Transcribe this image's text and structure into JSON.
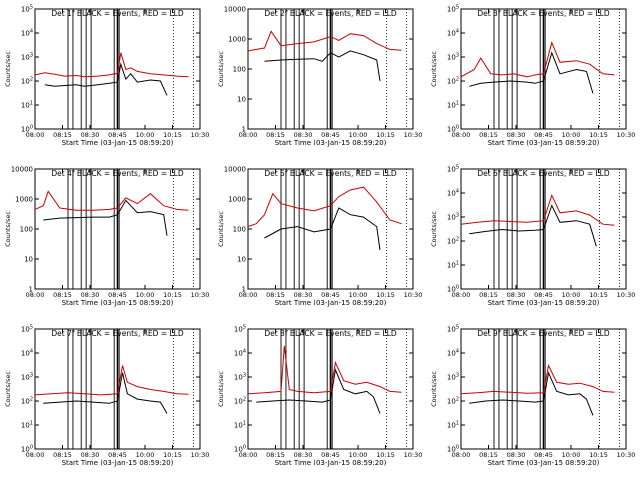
{
  "chart_data": [
    {
      "type": "line",
      "title": "Det 1f BLACK = Events, RED = LLD",
      "ylabel": "Counts/sec",
      "xlabel": "Start Time (03-Jan-15 08:59:20)",
      "yscale": "log",
      "ylim": [
        1,
        100000
      ],
      "xlim": [
        "08:00",
        "10:30"
      ],
      "xticks": [
        "08:00",
        "08:15",
        "08:30",
        "08:45",
        "10:00",
        "10:15",
        "10:30"
      ],
      "yticks": [
        "10^0",
        "10^1",
        "10^2",
        "10^3",
        "10^4",
        "10^5"
      ],
      "series": [
        {
          "name": "RED",
          "color": "#cc0000",
          "x": [
            0,
            0.06,
            0.12,
            0.18,
            0.25,
            0.3,
            0.38,
            0.45,
            0.5,
            0.52,
            0.55,
            0.58,
            0.62,
            0.7,
            0.78,
            0.86,
            0.93
          ],
          "y": [
            180,
            220,
            190,
            160,
            170,
            150,
            160,
            180,
            210,
            1500,
            300,
            350,
            250,
            200,
            180,
            160,
            150
          ]
        },
        {
          "name": "BLACK",
          "color": "#000000",
          "x": [
            0.06,
            0.12,
            0.18,
            0.25,
            0.3,
            0.38,
            0.45,
            0.5,
            0.52,
            0.55,
            0.58,
            0.62,
            0.7,
            0.76,
            0.8
          ],
          "y": [
            70,
            60,
            65,
            70,
            60,
            70,
            80,
            90,
            500,
            120,
            200,
            90,
            110,
            100,
            25
          ]
        }
      ]
    },
    {
      "type": "line",
      "title": "Det 2f BLACK = Events, RED = LLD",
      "ylabel": "Counts/sec",
      "xlabel": "Start Time (03-Jan-15 08:59:20)",
      "yscale": "log",
      "ylim": [
        1,
        10000
      ],
      "xlim": [
        "08:00",
        "10:30"
      ],
      "xticks": [
        "08:00",
        "08:15",
        "08:30",
        "08:45",
        "10:00",
        "10:15",
        "10:30"
      ],
      "yticks": [
        "1",
        "10",
        "100",
        "1000",
        "10000"
      ],
      "series": [
        {
          "name": "RED",
          "color": "#cc0000",
          "x": [
            0,
            0.05,
            0.1,
            0.14,
            0.2,
            0.3,
            0.4,
            0.5,
            0.55,
            0.62,
            0.7,
            0.78,
            0.86,
            0.93
          ],
          "y": [
            400,
            450,
            500,
            1800,
            600,
            700,
            800,
            1200,
            900,
            1500,
            1300,
            700,
            450,
            420
          ]
        },
        {
          "name": "BLACK",
          "color": "#000000",
          "x": [
            0.1,
            0.2,
            0.3,
            0.4,
            0.45,
            0.5,
            0.55,
            0.62,
            0.7,
            0.78,
            0.8
          ],
          "y": [
            180,
            200,
            210,
            220,
            180,
            350,
            250,
            400,
            300,
            200,
            40
          ]
        }
      ]
    },
    {
      "type": "line",
      "title": "Det 3f BLACK = Events, RED = LLD",
      "ylabel": "Counts/sec",
      "xlabel": "Start Time (03-Jan-15 08:59:20)",
      "yscale": "log",
      "ylim": [
        1,
        100000
      ],
      "xlim": [
        "08:00",
        "10:30"
      ],
      "xticks": [
        "08:00",
        "08:15",
        "08:30",
        "08:45",
        "10:00",
        "10:15",
        "10:30"
      ],
      "yticks": [
        "10^0",
        "10^1",
        "10^2",
        "10^3",
        "10^4",
        "10^5"
      ],
      "series": [
        {
          "name": "RED",
          "color": "#cc0000",
          "x": [
            0,
            0.08,
            0.12,
            0.18,
            0.25,
            0.32,
            0.4,
            0.45,
            0.5,
            0.55,
            0.6,
            0.7,
            0.78,
            0.86,
            0.93
          ],
          "y": [
            150,
            300,
            900,
            200,
            180,
            200,
            150,
            180,
            200,
            4000,
            600,
            700,
            500,
            200,
            180
          ]
        },
        {
          "name": "BLACK",
          "color": "#000000",
          "x": [
            0.05,
            0.12,
            0.2,
            0.3,
            0.4,
            0.45,
            0.5,
            0.55,
            0.6,
            0.7,
            0.76,
            0.8
          ],
          "y": [
            60,
            80,
            90,
            100,
            90,
            80,
            100,
            1500,
            200,
            300,
            250,
            30
          ]
        }
      ]
    },
    {
      "type": "line",
      "title": "Det 4f BLACK = Events, RED = LLD",
      "ylabel": "Counts/sec",
      "xlabel": "Start Time (03-Jan-15 08:59:20)",
      "yscale": "log",
      "ylim": [
        1,
        10000
      ],
      "xlim": [
        "08:00",
        "10:30"
      ],
      "xticks": [
        "08:00",
        "08:15",
        "08:30",
        "08:45",
        "10:00",
        "10:15",
        "10:30"
      ],
      "yticks": [
        "1",
        "10",
        "100",
        "1000",
        "10000"
      ],
      "series": [
        {
          "name": "RED",
          "color": "#cc0000",
          "x": [
            0,
            0.05,
            0.08,
            0.15,
            0.25,
            0.35,
            0.45,
            0.5,
            0.55,
            0.62,
            0.7,
            0.78,
            0.86,
            0.93
          ],
          "y": [
            450,
            600,
            1800,
            500,
            420,
            420,
            450,
            500,
            1100,
            700,
            1500,
            600,
            450,
            420
          ]
        },
        {
          "name": "BLACK",
          "color": "#000000",
          "x": [
            0.05,
            0.15,
            0.25,
            0.35,
            0.45,
            0.5,
            0.55,
            0.62,
            0.7,
            0.78,
            0.8
          ],
          "y": [
            200,
            230,
            240,
            250,
            250,
            300,
            900,
            350,
            380,
            300,
            60
          ]
        }
      ]
    },
    {
      "type": "line",
      "title": "Det 5f BLACK = Events, RED = LLD",
      "ylabel": "Counts/sec",
      "xlabel": "Start Time (03-Jan-15 08:59:20)",
      "yscale": "log",
      "ylim": [
        1,
        10000
      ],
      "xlim": [
        "08:00",
        "10:30"
      ],
      "xticks": [
        "08:00",
        "08:15",
        "08:30",
        "08:45",
        "10:00",
        "10:15",
        "10:30"
      ],
      "yticks": [
        "1",
        "10",
        "100",
        "1000",
        "10000"
      ],
      "series": [
        {
          "name": "RED",
          "color": "#cc0000",
          "x": [
            0,
            0.05,
            0.1,
            0.15,
            0.2,
            0.3,
            0.4,
            0.5,
            0.55,
            0.62,
            0.7,
            0.78,
            0.86,
            0.93
          ],
          "y": [
            120,
            150,
            300,
            1500,
            700,
            500,
            400,
            600,
            1200,
            2000,
            2500,
            800,
            200,
            150
          ]
        },
        {
          "name": "BLACK",
          "color": "#000000",
          "x": [
            0.1,
            0.2,
            0.3,
            0.4,
            0.5,
            0.55,
            0.62,
            0.7,
            0.78,
            0.8
          ],
          "y": [
            50,
            100,
            120,
            80,
            100,
            500,
            300,
            250,
            120,
            20
          ]
        }
      ]
    },
    {
      "type": "line",
      "title": "Det 6f BLACK = Events, RED = LLD",
      "ylabel": "Counts/sec",
      "xlabel": "Start Time (03-Jan-15 08:59:20)",
      "yscale": "log",
      "ylim": [
        1,
        100000
      ],
      "xlim": [
        "08:00",
        "10:30"
      ],
      "xticks": [
        "08:00",
        "08:15",
        "08:30",
        "08:45",
        "10:00",
        "10:15",
        "10:30"
      ],
      "yticks": [
        "10^0",
        "10^1",
        "10^2",
        "10^3",
        "10^4",
        "10^5"
      ],
      "series": [
        {
          "name": "RED",
          "color": "#cc0000",
          "x": [
            0,
            0.1,
            0.2,
            0.3,
            0.4,
            0.5,
            0.55,
            0.6,
            0.7,
            0.78,
            0.86,
            0.93
          ],
          "y": [
            500,
            600,
            700,
            650,
            600,
            700,
            8000,
            1500,
            1800,
            1200,
            500,
            450
          ]
        },
        {
          "name": "BLACK",
          "color": "#000000",
          "x": [
            0.05,
            0.15,
            0.25,
            0.35,
            0.45,
            0.5,
            0.55,
            0.6,
            0.7,
            0.78,
            0.82
          ],
          "y": [
            200,
            250,
            300,
            260,
            280,
            300,
            3000,
            600,
            700,
            500,
            60
          ]
        }
      ]
    },
    {
      "type": "line",
      "title": "Det 7f BLACK = Events, RED = LLD",
      "ylabel": "Counts/sec",
      "xlabel": "Start Time (03-Jan-15 08:59:20)",
      "yscale": "log",
      "ylim": [
        1,
        100000
      ],
      "xlim": [
        "08:00",
        "10:30"
      ],
      "xticks": [
        "08:00",
        "08:15",
        "08:30",
        "08:45",
        "10:00",
        "10:15",
        "10:30"
      ],
      "yticks": [
        "10^0",
        "10^1",
        "10^2",
        "10^3",
        "10^4",
        "10^5"
      ],
      "series": [
        {
          "name": "RED",
          "color": "#cc0000",
          "x": [
            0,
            0.1,
            0.2,
            0.3,
            0.4,
            0.5,
            0.53,
            0.56,
            0.62,
            0.7,
            0.78,
            0.86,
            0.93
          ],
          "y": [
            180,
            200,
            220,
            200,
            180,
            200,
            3000,
            600,
            400,
            300,
            250,
            200,
            190
          ]
        },
        {
          "name": "BLACK",
          "color": "#000000",
          "x": [
            0.05,
            0.15,
            0.25,
            0.35,
            0.45,
            0.5,
            0.53,
            0.56,
            0.62,
            0.7,
            0.76,
            0.8
          ],
          "y": [
            80,
            90,
            100,
            90,
            80,
            100,
            1500,
            200,
            120,
            100,
            90,
            30
          ]
        }
      ]
    },
    {
      "type": "line",
      "title": "Det 8f BLACK = Events, RED = LLD",
      "ylabel": "Counts/sec",
      "xlabel": "Start Time (03-Jan-15 08:59:20)",
      "yscale": "log",
      "ylim": [
        1,
        100000
      ],
      "xlim": [
        "08:00",
        "10:30"
      ],
      "xticks": [
        "08:00",
        "08:15",
        "08:30",
        "08:45",
        "10:00",
        "10:15",
        "10:30"
      ],
      "yticks": [
        "10^0",
        "10^1",
        "10^2",
        "10^3",
        "10^4",
        "10^5"
      ],
      "series": [
        {
          "name": "RED",
          "color": "#cc0000",
          "x": [
            0,
            0.1,
            0.2,
            0.22,
            0.25,
            0.3,
            0.4,
            0.5,
            0.53,
            0.58,
            0.65,
            0.72,
            0.8,
            0.86,
            0.93
          ],
          "y": [
            200,
            220,
            250,
            20000,
            300,
            250,
            220,
            250,
            4000,
            700,
            500,
            600,
            400,
            250,
            230
          ]
        },
        {
          "name": "BLACK",
          "color": "#000000",
          "x": [
            0.05,
            0.15,
            0.25,
            0.35,
            0.45,
            0.5,
            0.53,
            0.58,
            0.65,
            0.72,
            0.76,
            0.8
          ],
          "y": [
            90,
            100,
            110,
            100,
            90,
            110,
            2000,
            300,
            200,
            250,
            150,
            30
          ]
        }
      ]
    },
    {
      "type": "line",
      "title": "Det 9f BLACK = Events, RED = LLD",
      "ylabel": "Counts/sec",
      "xlabel": "Start Time (03-Jan-15 08:59:20)",
      "yscale": "log",
      "ylim": [
        1,
        100000
      ],
      "xlim": [
        "08:00",
        "10:30"
      ],
      "xticks": [
        "08:00",
        "08:15",
        "08:30",
        "08:45",
        "10:00",
        "10:15",
        "10:30"
      ],
      "yticks": [
        "10^0",
        "10^1",
        "10^2",
        "10^3",
        "10^4",
        "10^5"
      ],
      "series": [
        {
          "name": "RED",
          "color": "#cc0000",
          "x": [
            0,
            0.1,
            0.2,
            0.3,
            0.4,
            0.5,
            0.53,
            0.58,
            0.65,
            0.72,
            0.8,
            0.86,
            0.93
          ],
          "y": [
            200,
            220,
            250,
            230,
            210,
            220,
            3000,
            600,
            500,
            550,
            400,
            250,
            230
          ]
        },
        {
          "name": "BLACK",
          "color": "#000000",
          "x": [
            0.05,
            0.15,
            0.25,
            0.35,
            0.45,
            0.5,
            0.53,
            0.58,
            0.65,
            0.72,
            0.76,
            0.8
          ],
          "y": [
            80,
            100,
            110,
            100,
            90,
            100,
            1500,
            250,
            180,
            200,
            120,
            25
          ]
        }
      ]
    }
  ]
}
